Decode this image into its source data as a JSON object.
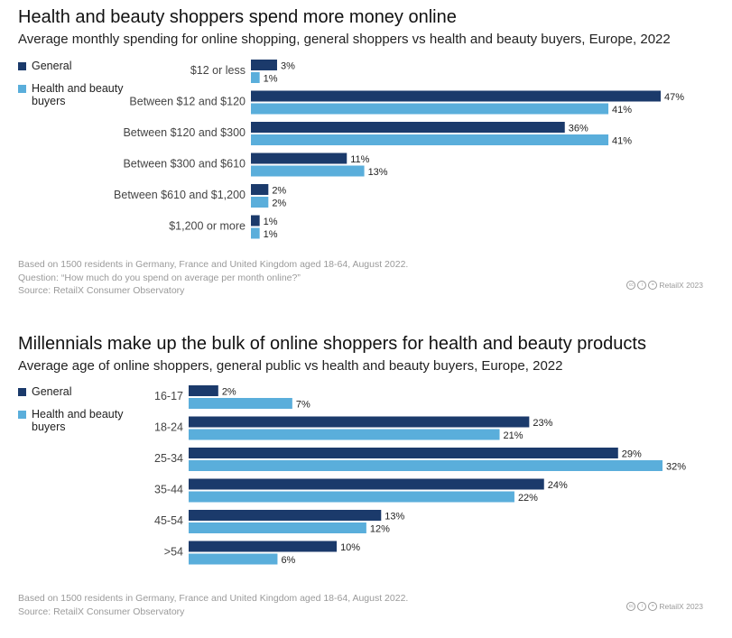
{
  "colors": {
    "general": "#1b3a6b",
    "hb": "#5aaedb"
  },
  "chart_data": [
    {
      "type": "bar",
      "orientation": "horizontal",
      "title": "Health and beauty shoppers spend more money online",
      "subtitle": "Average monthly spending for online shopping, general shoppers vs health and beauty buyers, Europe, 2022",
      "categories": [
        "$12 or less",
        "Between $12 and $120",
        "Between $120 and $300",
        "Between $300 and $610",
        "Between $610 and $1,200",
        "$1,200 or more"
      ],
      "series": [
        {
          "name": "General",
          "values": [
            3,
            47,
            36,
            11,
            2,
            1
          ],
          "labels": [
            "3%",
            "47%",
            "36%",
            "11%",
            "2%",
            "1%"
          ]
        },
        {
          "name": "Health and beauty buyers",
          "values": [
            1,
            41,
            41,
            13,
            2,
            1
          ],
          "labels": [
            "1%",
            "41%",
            "41%",
            "13%",
            "2%",
            "1%"
          ]
        }
      ],
      "xlim": [
        0,
        47
      ],
      "notes": [
        "Based on 1500 residents in Germany, France and United Kingdom aged 18-64, August 2022.",
        "Question: “How much do you spend on average per month online?”",
        "Source: RetailX Consumer Observatory"
      ],
      "credit": "RetailX 2023"
    },
    {
      "type": "bar",
      "orientation": "horizontal",
      "title": "Millennials make up the bulk of online shoppers for health and beauty products",
      "subtitle": "Average age of online shoppers, general public vs health and beauty buyers, Europe, 2022",
      "categories": [
        "16-17",
        "18-24",
        "25-34",
        "35-44",
        "45-54",
        ">54"
      ],
      "series": [
        {
          "name": "General",
          "values": [
            2,
            23,
            29,
            24,
            13,
            10
          ],
          "labels": [
            "2%",
            "23%",
            "29%",
            "24%",
            "13%",
            "10%"
          ]
        },
        {
          "name": "Health and beauty buyers",
          "values": [
            7,
            21,
            32,
            22,
            12,
            6
          ],
          "labels": [
            "7%",
            "21%",
            "32%",
            "22%",
            "12%",
            "6%"
          ]
        }
      ],
      "xlim": [
        0,
        32
      ],
      "notes": [
        "Based on 1500 residents in Germany, France and United Kingdom aged 18-64, August 2022.",
        "Source: RetailX Consumer Observatory"
      ],
      "credit": "RetailX 2023"
    }
  ]
}
